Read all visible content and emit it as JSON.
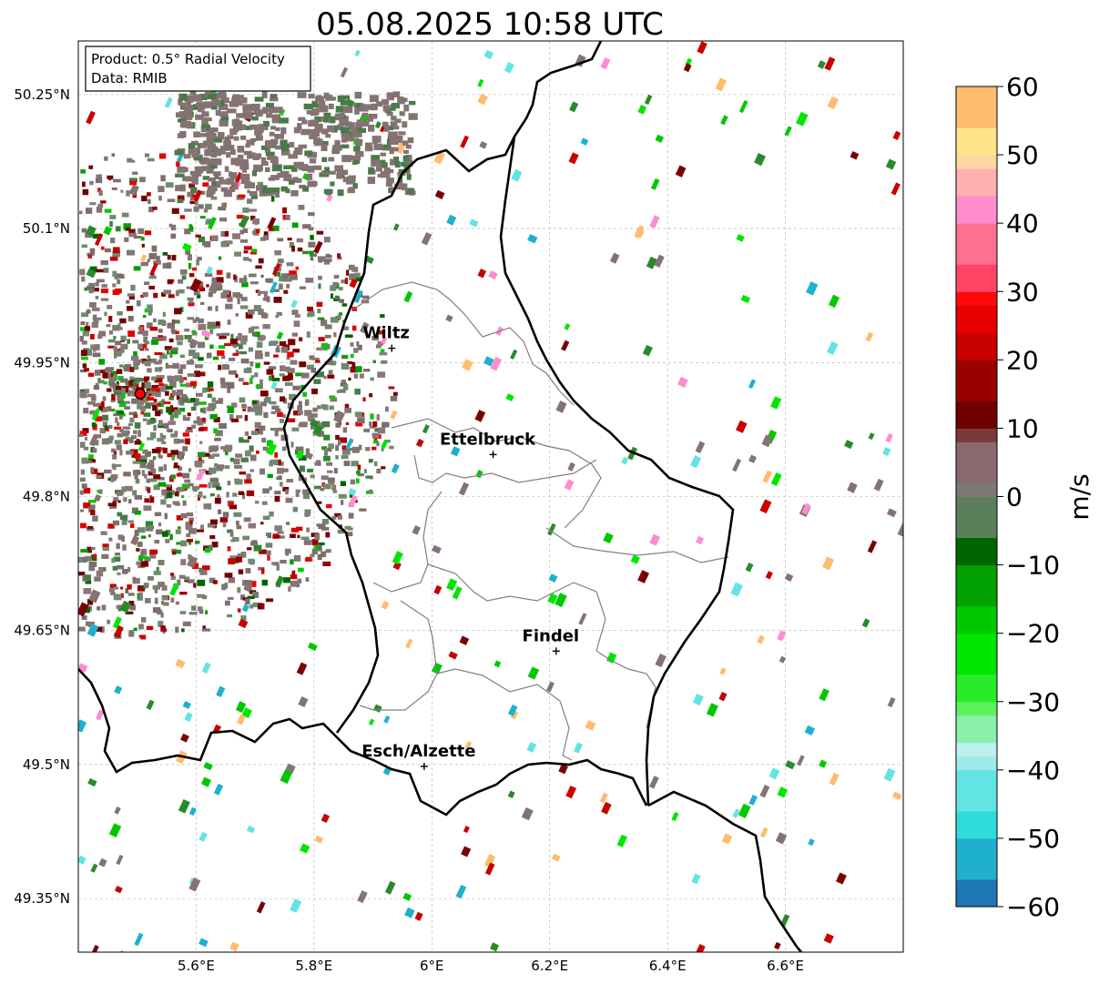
{
  "title": "05.08.2025 10:58 UTC",
  "info": {
    "product_line": "Product: 0.5° Radial Velocity",
    "data_line": "Data: RMIB"
  },
  "map": {
    "lon_range": [
      5.4,
      6.8
    ],
    "lat_range": [
      49.29,
      50.31
    ],
    "x_ticks": [
      {
        "value": 5.6,
        "label": "5.6°E"
      },
      {
        "value": 5.8,
        "label": "5.8°E"
      },
      {
        "value": 6.0,
        "label": "6°E"
      },
      {
        "value": 6.2,
        "label": "6.2°E"
      },
      {
        "value": 6.4,
        "label": "6.4°E"
      },
      {
        "value": 6.6,
        "label": "6.6°E"
      }
    ],
    "y_ticks": [
      {
        "value": 50.25,
        "label": "50.25°N"
      },
      {
        "value": 50.1,
        "label": "50.1°N"
      },
      {
        "value": 49.95,
        "label": "49.95°N"
      },
      {
        "value": 49.8,
        "label": "49.8°N"
      },
      {
        "value": 49.65,
        "label": "49.65°N"
      },
      {
        "value": 49.5,
        "label": "49.5°N"
      },
      {
        "value": 49.35,
        "label": "49.35°N"
      }
    ],
    "radar_site": {
      "lon": 5.505,
      "lat": 49.915
    },
    "cities": [
      {
        "name": "Wiltz",
        "lon": 5.932,
        "lat": 49.966
      },
      {
        "name": "Ettelbruck",
        "lon": 6.104,
        "lat": 49.847
      },
      {
        "name": "Findel",
        "lon": 6.211,
        "lat": 49.627
      },
      {
        "name": "Esch/Alzette",
        "lon": 5.987,
        "lat": 49.498
      }
    ]
  },
  "colorbar": {
    "label": "m/s",
    "min": -60,
    "max": 60,
    "ticks": [
      {
        "value": 60,
        "label": "60"
      },
      {
        "value": 50,
        "label": "50"
      },
      {
        "value": 40,
        "label": "40"
      },
      {
        "value": 30,
        "label": "30"
      },
      {
        "value": 20,
        "label": "20"
      },
      {
        "value": 10,
        "label": "10"
      },
      {
        "value": 0,
        "label": "0"
      },
      {
        "value": -10,
        "label": "−10"
      },
      {
        "value": -20,
        "label": "−20"
      },
      {
        "value": -30,
        "label": "−30"
      },
      {
        "value": -40,
        "label": "−40"
      },
      {
        "value": -50,
        "label": "−50"
      },
      {
        "value": -60,
        "label": "−60"
      }
    ],
    "stops": [
      {
        "v": -60,
        "color": "#1f77b4"
      },
      {
        "v": -55,
        "color": "#1fb0cf"
      },
      {
        "v": -50,
        "color": "#2fdcdc"
      },
      {
        "v": -45,
        "color": "#63e4e4"
      },
      {
        "v": -40,
        "color": "#9ceaea"
      },
      {
        "v": -37,
        "color": "#bff0f0"
      },
      {
        "v": -35,
        "color": "#8cf0a8"
      },
      {
        "v": -32,
        "color": "#5cf05c"
      },
      {
        "v": -30,
        "color": "#28ec28"
      },
      {
        "v": -25,
        "color": "#00e600"
      },
      {
        "v": -20,
        "color": "#00c800"
      },
      {
        "v": -15,
        "color": "#00a000"
      },
      {
        "v": -10,
        "color": "#006600"
      },
      {
        "v": -5,
        "color": "#5b7f5b"
      },
      {
        "v": 0,
        "color": "#7a7a72"
      },
      {
        "v": 3,
        "color": "#8a6a6e"
      },
      {
        "v": 8,
        "color": "#7a3a3a"
      },
      {
        "v": 10,
        "color": "#6e0000"
      },
      {
        "v": 15,
        "color": "#9a0000"
      },
      {
        "v": 20,
        "color": "#c80000"
      },
      {
        "v": 25,
        "color": "#e60000"
      },
      {
        "v": 28,
        "color": "#ff0a0a"
      },
      {
        "v": 30,
        "color": "#ff4466"
      },
      {
        "v": 35,
        "color": "#ff6f8f"
      },
      {
        "v": 40,
        "color": "#ff8ccc"
      },
      {
        "v": 44,
        "color": "#ffb0b0"
      },
      {
        "v": 48,
        "color": "#ffd7a0"
      },
      {
        "v": 50,
        "color": "#ffe48a"
      },
      {
        "v": 55,
        "color": "#ffbc6e"
      },
      {
        "v": 60,
        "color": "#ff9a50"
      }
    ]
  },
  "colors": {
    "grid": "#b0b0b0",
    "border": "#000000",
    "region_line": "#808080",
    "radar_site": "#ff0000",
    "echo_neutral": "#857272",
    "echo_green_dark": "#4a7a4a"
  }
}
